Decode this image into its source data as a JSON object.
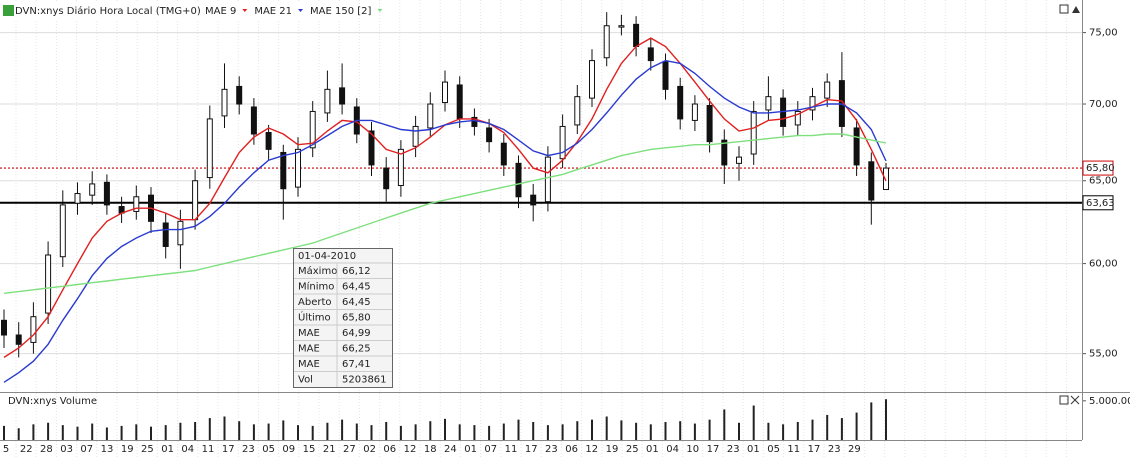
{
  "chart_data": {
    "type": "candlestick",
    "title": "DVN:xnys Diário Hora Local (TMG+0)",
    "log": true,
    "grid": true,
    "ylim": [
      53,
      77.4
    ],
    "yticks": [
      {
        "value": 55,
        "label": "55,00"
      },
      {
        "value": 60,
        "label": "60,00"
      },
      {
        "value": 65,
        "label": "65,00"
      },
      {
        "value": 70,
        "label": "70,00"
      },
      {
        "value": 75,
        "label": "75,00"
      }
    ],
    "candle_color": "#111111",
    "open": [
      56.8,
      56.0,
      55.6,
      57.2,
      60.4,
      63.6,
      64.1,
      64.9,
      63.4,
      63.1,
      64.1,
      62.4,
      61.1,
      62.6,
      65.2,
      69.2,
      71.2,
      69.8,
      68.1,
      66.8,
      64.6,
      67.1,
      69.4,
      71.1,
      69.8,
      68.2,
      65.8,
      64.7,
      67.2,
      68.4,
      70.1,
      71.3,
      69.1,
      68.4,
      67.4,
      66.1,
      64.1,
      63.7,
      66.4,
      68.6,
      70.4,
      73.2,
      75.4,
      75.6,
      73.9,
      72.9,
      71.2,
      68.9,
      69.9,
      67.6,
      66.1,
      66.7,
      69.6,
      70.4,
      68.6,
      69.6,
      70.4,
      71.6,
      68.4,
      66.2,
      64.45
    ],
    "high": [
      57.4,
      56.7,
      57.8,
      61.3,
      64.4,
      64.9,
      65.6,
      65.4,
      64.0,
      64.7,
      64.6,
      63.0,
      63.2,
      65.7,
      69.9,
      72.8,
      71.9,
      70.4,
      68.6,
      67.3,
      67.8,
      70.2,
      72.3,
      72.8,
      70.4,
      68.8,
      66.5,
      67.6,
      69.2,
      70.8,
      72.3,
      71.9,
      69.7,
      69.0,
      68.0,
      66.6,
      64.8,
      67.2,
      69.3,
      71.3,
      73.8,
      76.5,
      76.3,
      76.2,
      74.6,
      73.5,
      71.8,
      70.6,
      70.4,
      68.3,
      67.2,
      70.2,
      71.9,
      71.0,
      70.2,
      71.1,
      72.1,
      73.6,
      69.0,
      66.8,
      66.12
    ],
    "low": [
      55.3,
      54.8,
      55.0,
      56.6,
      59.8,
      62.9,
      63.5,
      62.9,
      62.4,
      62.6,
      61.8,
      60.3,
      59.7,
      62.0,
      64.5,
      68.4,
      69.3,
      67.3,
      66.3,
      62.6,
      64.0,
      66.5,
      68.8,
      69.3,
      67.4,
      65.3,
      63.7,
      64.0,
      66.5,
      67.8,
      69.5,
      68.4,
      67.9,
      66.8,
      65.3,
      63.3,
      62.5,
      63.1,
      65.8,
      68.0,
      69.8,
      72.6,
      74.8,
      73.3,
      72.3,
      70.3,
      68.3,
      68.2,
      66.8,
      64.8,
      65.0,
      66.0,
      68.9,
      67.9,
      67.9,
      68.9,
      69.8,
      67.8,
      65.3,
      62.3,
      64.45
    ],
    "close": [
      56.0,
      55.5,
      57.0,
      60.5,
      63.5,
      64.2,
      64.8,
      63.5,
      63.0,
      64.0,
      62.5,
      61.0,
      62.5,
      65.0,
      69.0,
      71.0,
      70.0,
      68.0,
      67.0,
      64.5,
      67.0,
      69.5,
      71.0,
      70.0,
      68.0,
      66.0,
      64.5,
      67.0,
      68.5,
      70.0,
      71.5,
      69.0,
      68.5,
      67.5,
      66.0,
      64.0,
      63.5,
      66.5,
      68.5,
      70.5,
      73.0,
      75.5,
      75.5,
      74.0,
      73.0,
      71.0,
      69.0,
      70.0,
      67.5,
      66.0,
      66.5,
      69.5,
      70.5,
      68.5,
      69.5,
      70.5,
      71.5,
      68.5,
      66.0,
      63.8,
      65.8
    ],
    "series": [
      {
        "name": "MAE 9",
        "color": "#e02020",
        "values": [
          54.8,
          55.3,
          56.0,
          57.0,
          58.5,
          60.0,
          61.5,
          62.5,
          63.0,
          63.3,
          63.3,
          63.0,
          62.6,
          62.6,
          63.6,
          65.2,
          66.8,
          67.8,
          68.4,
          68.0,
          67.3,
          67.4,
          68.2,
          68.9,
          68.8,
          68.0,
          67.0,
          66.7,
          67.1,
          67.8,
          68.6,
          69.0,
          69.0,
          68.7,
          68.1,
          67.0,
          65.8,
          65.5,
          66.3,
          67.5,
          69.0,
          71.0,
          72.8,
          74.0,
          74.6,
          74.0,
          72.8,
          71.5,
          70.2,
          69.0,
          68.2,
          68.4,
          68.9,
          69.0,
          69.3,
          69.8,
          70.3,
          70.2,
          68.9,
          67.0,
          64.99
        ]
      },
      {
        "name": "MAE 21",
        "color": "#2a3ad0",
        "values": [
          53.5,
          54.0,
          54.6,
          55.5,
          56.8,
          58.0,
          59.3,
          60.3,
          61.0,
          61.5,
          61.9,
          62.0,
          62.0,
          62.2,
          62.8,
          63.6,
          64.6,
          65.5,
          66.3,
          66.6,
          66.8,
          67.3,
          67.9,
          68.5,
          68.9,
          68.9,
          68.6,
          68.3,
          68.2,
          68.3,
          68.6,
          68.8,
          68.9,
          68.7,
          68.3,
          67.6,
          66.9,
          66.6,
          66.8,
          67.4,
          68.3,
          69.4,
          70.6,
          71.7,
          72.5,
          73.0,
          72.8,
          72.1,
          71.2,
          70.4,
          69.8,
          69.4,
          69.4,
          69.5,
          69.6,
          69.8,
          70.0,
          70.0,
          69.4,
          68.3,
          66.25
        ]
      },
      {
        "name": "MAE 150 [2]",
        "color": "#7de07d",
        "values": [
          58.3,
          58.4,
          58.5,
          58.6,
          58.7,
          58.8,
          58.9,
          59.0,
          59.1,
          59.2,
          59.3,
          59.4,
          59.5,
          59.6,
          59.8,
          60.0,
          60.2,
          60.4,
          60.6,
          60.8,
          61.0,
          61.2,
          61.5,
          61.8,
          62.1,
          62.4,
          62.7,
          63.0,
          63.3,
          63.6,
          63.8,
          64.0,
          64.2,
          64.4,
          64.6,
          64.8,
          65.0,
          65.2,
          65.4,
          65.7,
          66.0,
          66.3,
          66.6,
          66.8,
          67.0,
          67.1,
          67.2,
          67.3,
          67.3,
          67.4,
          67.5,
          67.6,
          67.7,
          67.8,
          67.9,
          67.9,
          68.0,
          68.0,
          67.8,
          67.6,
          67.41
        ]
      }
    ],
    "hlines": [
      {
        "value": 65.8,
        "label": "65,80",
        "color": "#cc0000",
        "style": "dotted"
      },
      {
        "value": 63.63,
        "label": "63,63",
        "color": "#000000",
        "style": "solid"
      }
    ],
    "volume": {
      "title": "DVN:xnys Volume",
      "ylim": [
        0,
        6000000
      ],
      "yticks": [
        {
          "value": 5000000,
          "label": "5.000.000"
        }
      ],
      "values": [
        1800000,
        1500000,
        2000000,
        2200000,
        1900000,
        1700000,
        2100000,
        1600000,
        1800000,
        2000000,
        1700000,
        1900000,
        2200000,
        2300000,
        2800000,
        3000000,
        2400000,
        2000000,
        2100000,
        2500000,
        1900000,
        1800000,
        2200000,
        2600000,
        2100000,
        1900000,
        2300000,
        1800000,
        2000000,
        2400000,
        2700000,
        2000000,
        1900000,
        1800000,
        2100000,
        2600000,
        2300000,
        1900000,
        2000000,
        2400000,
        2600000,
        3000000,
        2500000,
        2200000,
        2000000,
        2300000,
        2400000,
        2100000,
        2600000,
        3900000,
        2200000,
        4400000,
        2200000,
        2000000,
        2300000,
        2600000,
        3200000,
        2800000,
        3500000,
        4800000,
        5203861
      ]
    },
    "xtick_labels": [
      "5",
      "22",
      "28",
      "03",
      "07",
      "13",
      "19",
      "25",
      "01",
      "04",
      "11",
      "17",
      "23",
      "05",
      "09",
      "15",
      "21",
      "27",
      "02",
      "06",
      "12",
      "18",
      "24",
      "01",
      "07",
      "11",
      "17",
      "23",
      "06",
      "12",
      "19",
      "25",
      "01",
      "04",
      "10",
      "17",
      "23",
      "01",
      "05",
      "11",
      "17",
      "23",
      "29"
    ],
    "tooltip": {
      "date": "01-04-2010",
      "rows": [
        {
          "label": "Máximo",
          "value": "66,12",
          "color": "#222222"
        },
        {
          "label": "Mínimo",
          "value": "64,45",
          "color": "#222222"
        },
        {
          "label": "Aberto",
          "value": "64,45",
          "color": "#222222"
        },
        {
          "label": "Último",
          "value": "65,80",
          "color": "#222222"
        },
        {
          "label": "MAE",
          "value": "64,99",
          "color": "#e02020"
        },
        {
          "label": "MAE",
          "value": "66,25",
          "color": "#2a3ad0"
        },
        {
          "label": "MAE",
          "value": "67,41",
          "color": "#4ccc4c"
        },
        {
          "label": "Vol",
          "value": "5203861",
          "color": "#222222"
        }
      ]
    }
  }
}
